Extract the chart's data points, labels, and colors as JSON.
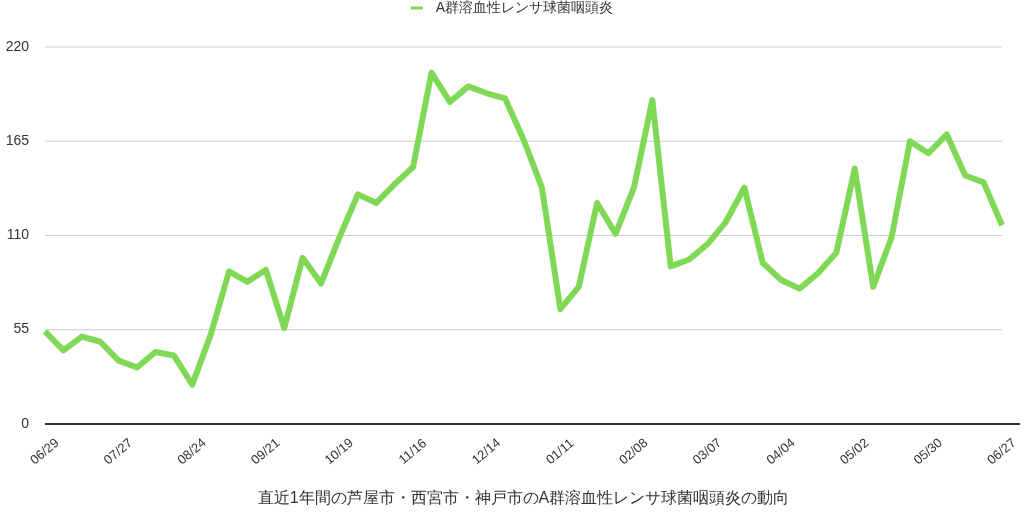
{
  "chart_data": {
    "type": "line",
    "xlabel": "直近1年間の芦屋市・西宮市・神戸市のA群溶血性レンサ球菌咽頭炎の動向",
    "categories": [
      "06/29",
      null,
      null,
      null,
      "07/27",
      null,
      null,
      null,
      "08/24",
      null,
      null,
      null,
      "09/21",
      null,
      null,
      null,
      "10/19",
      null,
      null,
      null,
      "11/16",
      null,
      null,
      null,
      "12/14",
      null,
      null,
      null,
      "01/11",
      null,
      null,
      null,
      "02/08",
      null,
      null,
      null,
      "03/07",
      null,
      null,
      null,
      "04/04",
      null,
      null,
      null,
      "05/02",
      null,
      null,
      null,
      "05/30",
      null,
      null,
      null,
      "06/27"
    ],
    "series": [
      {
        "name": "A群溶血性レンサ球菌咽頭炎",
        "color": "#7fd956",
        "values": [
          54,
          43,
          51,
          48,
          37,
          33,
          42,
          40,
          23,
          52,
          89,
          83,
          90,
          56,
          97,
          82,
          109,
          134,
          129,
          140,
          150,
          205,
          188,
          197,
          193,
          190,
          166,
          138,
          67,
          80,
          129,
          111,
          138,
          189,
          92,
          96,
          105,
          118,
          138,
          94,
          84,
          79,
          88,
          100,
          149,
          80,
          109,
          165,
          158,
          169,
          145,
          141,
          116
        ]
      }
    ],
    "ylim": [
      0,
      220
    ],
    "yticks": [
      0,
      55,
      110,
      165,
      220
    ],
    "grid": "y",
    "legend": "top",
    "line_style": "solid"
  }
}
